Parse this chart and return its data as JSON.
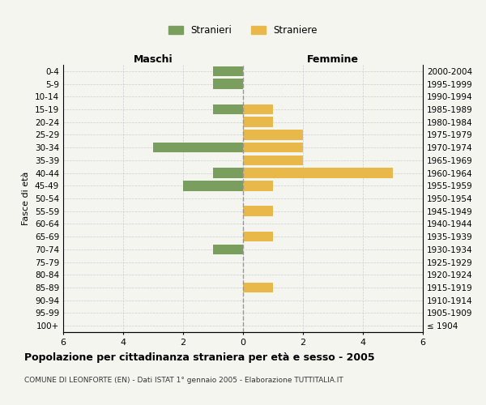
{
  "age_groups": [
    "100+",
    "95-99",
    "90-94",
    "85-89",
    "80-84",
    "75-79",
    "70-74",
    "65-69",
    "60-64",
    "55-59",
    "50-54",
    "45-49",
    "40-44",
    "35-39",
    "30-34",
    "25-29",
    "20-24",
    "15-19",
    "10-14",
    "5-9",
    "0-4"
  ],
  "birth_years": [
    "≤ 1904",
    "1905-1909",
    "1910-1914",
    "1915-1919",
    "1920-1924",
    "1925-1929",
    "1930-1934",
    "1935-1939",
    "1940-1944",
    "1945-1949",
    "1950-1954",
    "1955-1959",
    "1960-1964",
    "1965-1969",
    "1970-1974",
    "1975-1979",
    "1980-1984",
    "1985-1989",
    "1990-1994",
    "1995-1999",
    "2000-2004"
  ],
  "maschi": [
    0,
    0,
    0,
    0,
    0,
    0,
    1,
    0,
    0,
    0,
    0,
    2,
    1,
    0,
    3,
    0,
    0,
    1,
    0,
    1,
    1
  ],
  "femmine": [
    0,
    0,
    0,
    1,
    0,
    0,
    0,
    1,
    0,
    1,
    0,
    1,
    5,
    2,
    2,
    2,
    1,
    1,
    0,
    0,
    0
  ],
  "maschi_color": "#7a9e5e",
  "femmine_color": "#e8b84b",
  "title": "Popolazione per cittadinanza straniera per età e sesso - 2005",
  "subtitle": "COMUNE DI LEONFORTE (EN) - Dati ISTAT 1° gennaio 2005 - Elaborazione TUTTITALIA.IT",
  "ylabel_left": "Fasce di età",
  "header_left": "Maschi",
  "header_right": "Femmine",
  "legend_maschi": "Stranieri",
  "legend_femmine": "Straniere",
  "xlim": 6,
  "background_color": "#f5f5f0",
  "grid_color": "#cccccc",
  "bar_height": 0.8
}
